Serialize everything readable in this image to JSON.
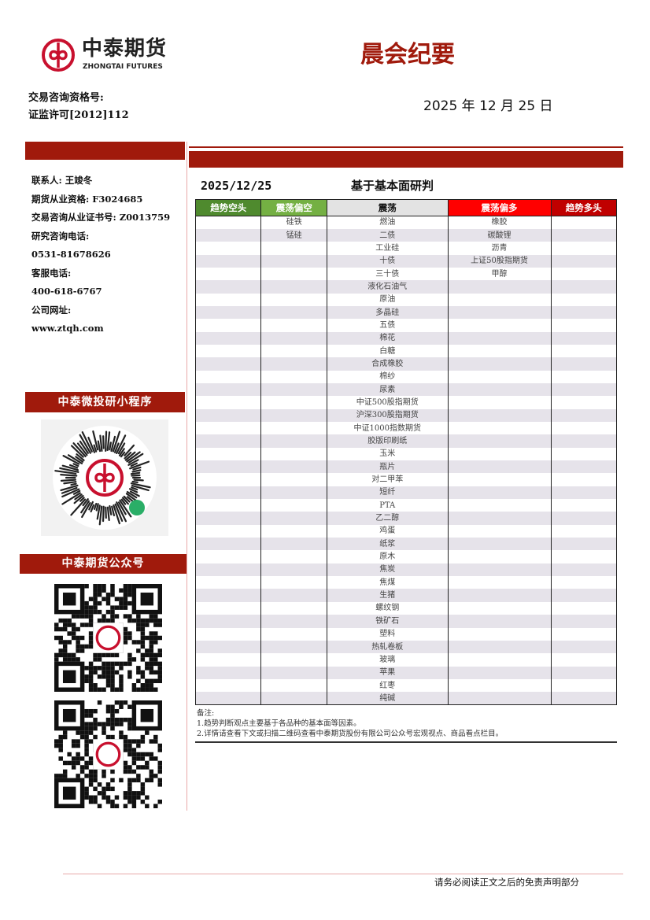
{
  "brand": {
    "name_cn": "中泰期货",
    "name_en": "ZHONGTAI FUTURES"
  },
  "report_title": "晨会纪要",
  "report_date": "2025 年 12 月 25 日",
  "qualification": {
    "label": "交易咨询资格号:",
    "value": "证监许可[2012]112"
  },
  "contact": [
    "联系人: 王竣冬",
    "期货从业资格: F3024685",
    "交易咨询从业证书号: Z0013759",
    "研究咨询电话:",
    "0531-81678626",
    "客服电话:",
    "400-618-6767",
    "公司网址:",
    "www.ztqh.com"
  ],
  "mini_program_label": "中泰微投研小程序",
  "official_account_label": "中泰期货公众号",
  "table_date": "2025/12/25",
  "table_title": "基于基本面研判",
  "colors": {
    "brand_red": "#a01a0c",
    "trend_short": "#4f8a2e",
    "range_short": "#74b043",
    "range": "#e3e3e3",
    "range_long": "#ff0000",
    "trend_long": "#c00000"
  },
  "columns": [
    {
      "label": "趋势空头",
      "items": []
    },
    {
      "label": "震荡偏空",
      "items": [
        "硅铁",
        "锰硅"
      ]
    },
    {
      "label": "震荡",
      "items": [
        "燃油",
        "二债",
        "工业硅",
        "十债",
        "三十债",
        "液化石油气",
        "原油",
        "多晶硅",
        "五债",
        "棉花",
        "白糖",
        "合成橡胶",
        "棉纱",
        "尿素",
        "中证500股指期货",
        "沪深300股指期货",
        "中证1000指数期货",
        "胶版印刷纸",
        "玉米",
        "瓶片",
        "对二甲苯",
        "短纤",
        "PTA",
        "乙二醇",
        "鸡蛋",
        "纸浆",
        "原木",
        "焦炭",
        "焦煤",
        "生猪",
        "螺纹钢",
        "铁矿石",
        "塑料",
        "热轧卷板",
        "玻璃",
        "苹果",
        "红枣",
        "纯碱"
      ]
    },
    {
      "label": "震荡偏多",
      "items": [
        "橡胶",
        "碳酸锂",
        "沥青",
        "上证50股指期货",
        "甲醇"
      ]
    },
    {
      "label": "趋势多头",
      "items": []
    }
  ],
  "notes": [
    "备注:",
    "1.趋势判断观点主要基于各品种的基本面等因素。",
    "2.详情请查看下文或扫描二维码查看中泰期货股份有限公司公众号宏观视点、商品看点栏目。"
  ],
  "footer": "请务必阅读正文之后的免责声明部分"
}
